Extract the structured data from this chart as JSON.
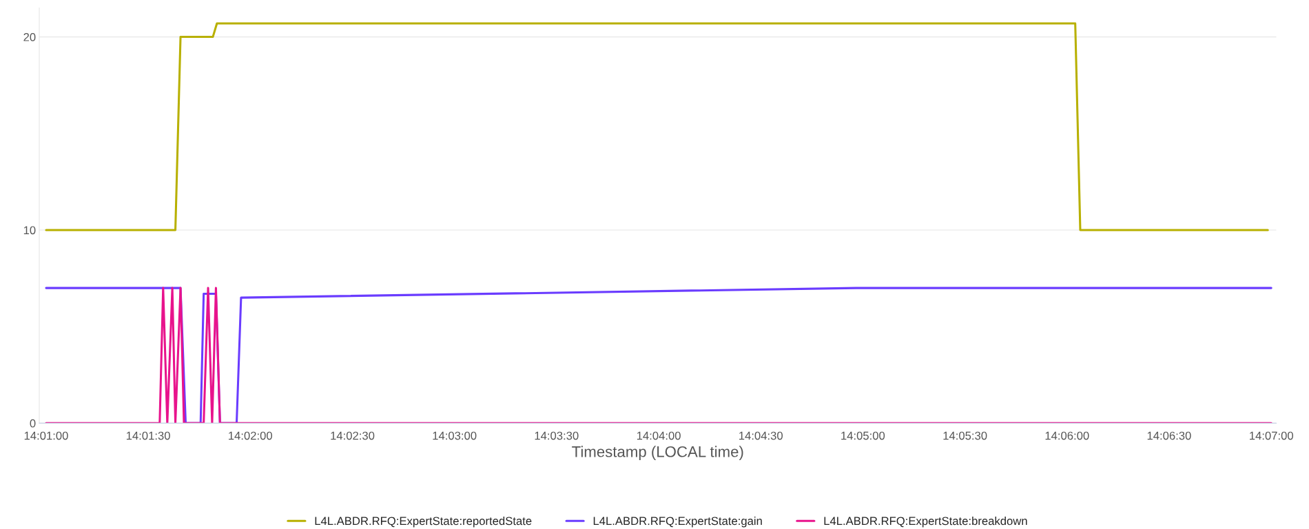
{
  "chart_data": {
    "type": "line",
    "xlabel": "Timestamp (LOCAL time)",
    "xlim": [
      14.01611,
      14.11708
    ],
    "xticks": [
      {
        "value": 14.01667,
        "label": "14:01:00"
      },
      {
        "value": 14.025,
        "label": "14:01:30"
      },
      {
        "value": 14.03333,
        "label": "14:02:00"
      },
      {
        "value": 14.04167,
        "label": "14:02:30"
      },
      {
        "value": 14.05,
        "label": "14:03:00"
      },
      {
        "value": 14.05833,
        "label": "14:03:30"
      },
      {
        "value": 14.06667,
        "label": "14:04:00"
      },
      {
        "value": 14.075,
        "label": "14:04:30"
      },
      {
        "value": 14.08333,
        "label": "14:05:00"
      },
      {
        "value": 14.09167,
        "label": "14:05:30"
      },
      {
        "value": 14.1,
        "label": "14:06:00"
      },
      {
        "value": 14.10833,
        "label": "14:06:30"
      },
      {
        "value": 14.11667,
        "label": "14:07:00"
      }
    ],
    "ylim": [
      0,
      21.5
    ],
    "yticks": [
      0,
      10,
      20
    ],
    "grid": "y",
    "legend": "bottom",
    "marker": "none",
    "line_style": "solid",
    "series": [
      {
        "name": "L4L.ABDR.RFQ:ExpertState:reportedState",
        "color": "#b8b000",
        "x": [
          14.01667,
          14.02722,
          14.02764,
          14.03028,
          14.03061,
          14.10067,
          14.10108,
          14.11639
        ],
        "values": [
          10,
          10,
          20,
          20,
          20.7,
          20.7,
          10,
          10
        ]
      },
      {
        "name": "L4L.ABDR.RFQ:ExpertState:gain",
        "color": "#6a3cff",
        "x": [
          14.01667,
          14.02764,
          14.02806,
          14.02928,
          14.02953,
          14.03053,
          14.03086,
          14.03222,
          14.03258,
          14.08278,
          14.11667
        ],
        "values": [
          7.0,
          7.0,
          0,
          0,
          6.7,
          6.7,
          0,
          0,
          6.5,
          7.0,
          7.0
        ]
      },
      {
        "name": "L4L.ABDR.RFQ:ExpertState:breakdown",
        "color": "#e8138c",
        "x": [
          14.01667,
          14.02594,
          14.02622,
          14.02656,
          14.02697,
          14.02722,
          14.02764,
          14.02792,
          14.02953,
          14.02989,
          14.03022,
          14.03053,
          14.03086,
          14.11667
        ],
        "values": [
          0,
          0,
          7.0,
          0,
          7.0,
          0,
          7.0,
          0,
          0,
          7.0,
          0,
          7.0,
          0,
          0
        ]
      }
    ]
  }
}
